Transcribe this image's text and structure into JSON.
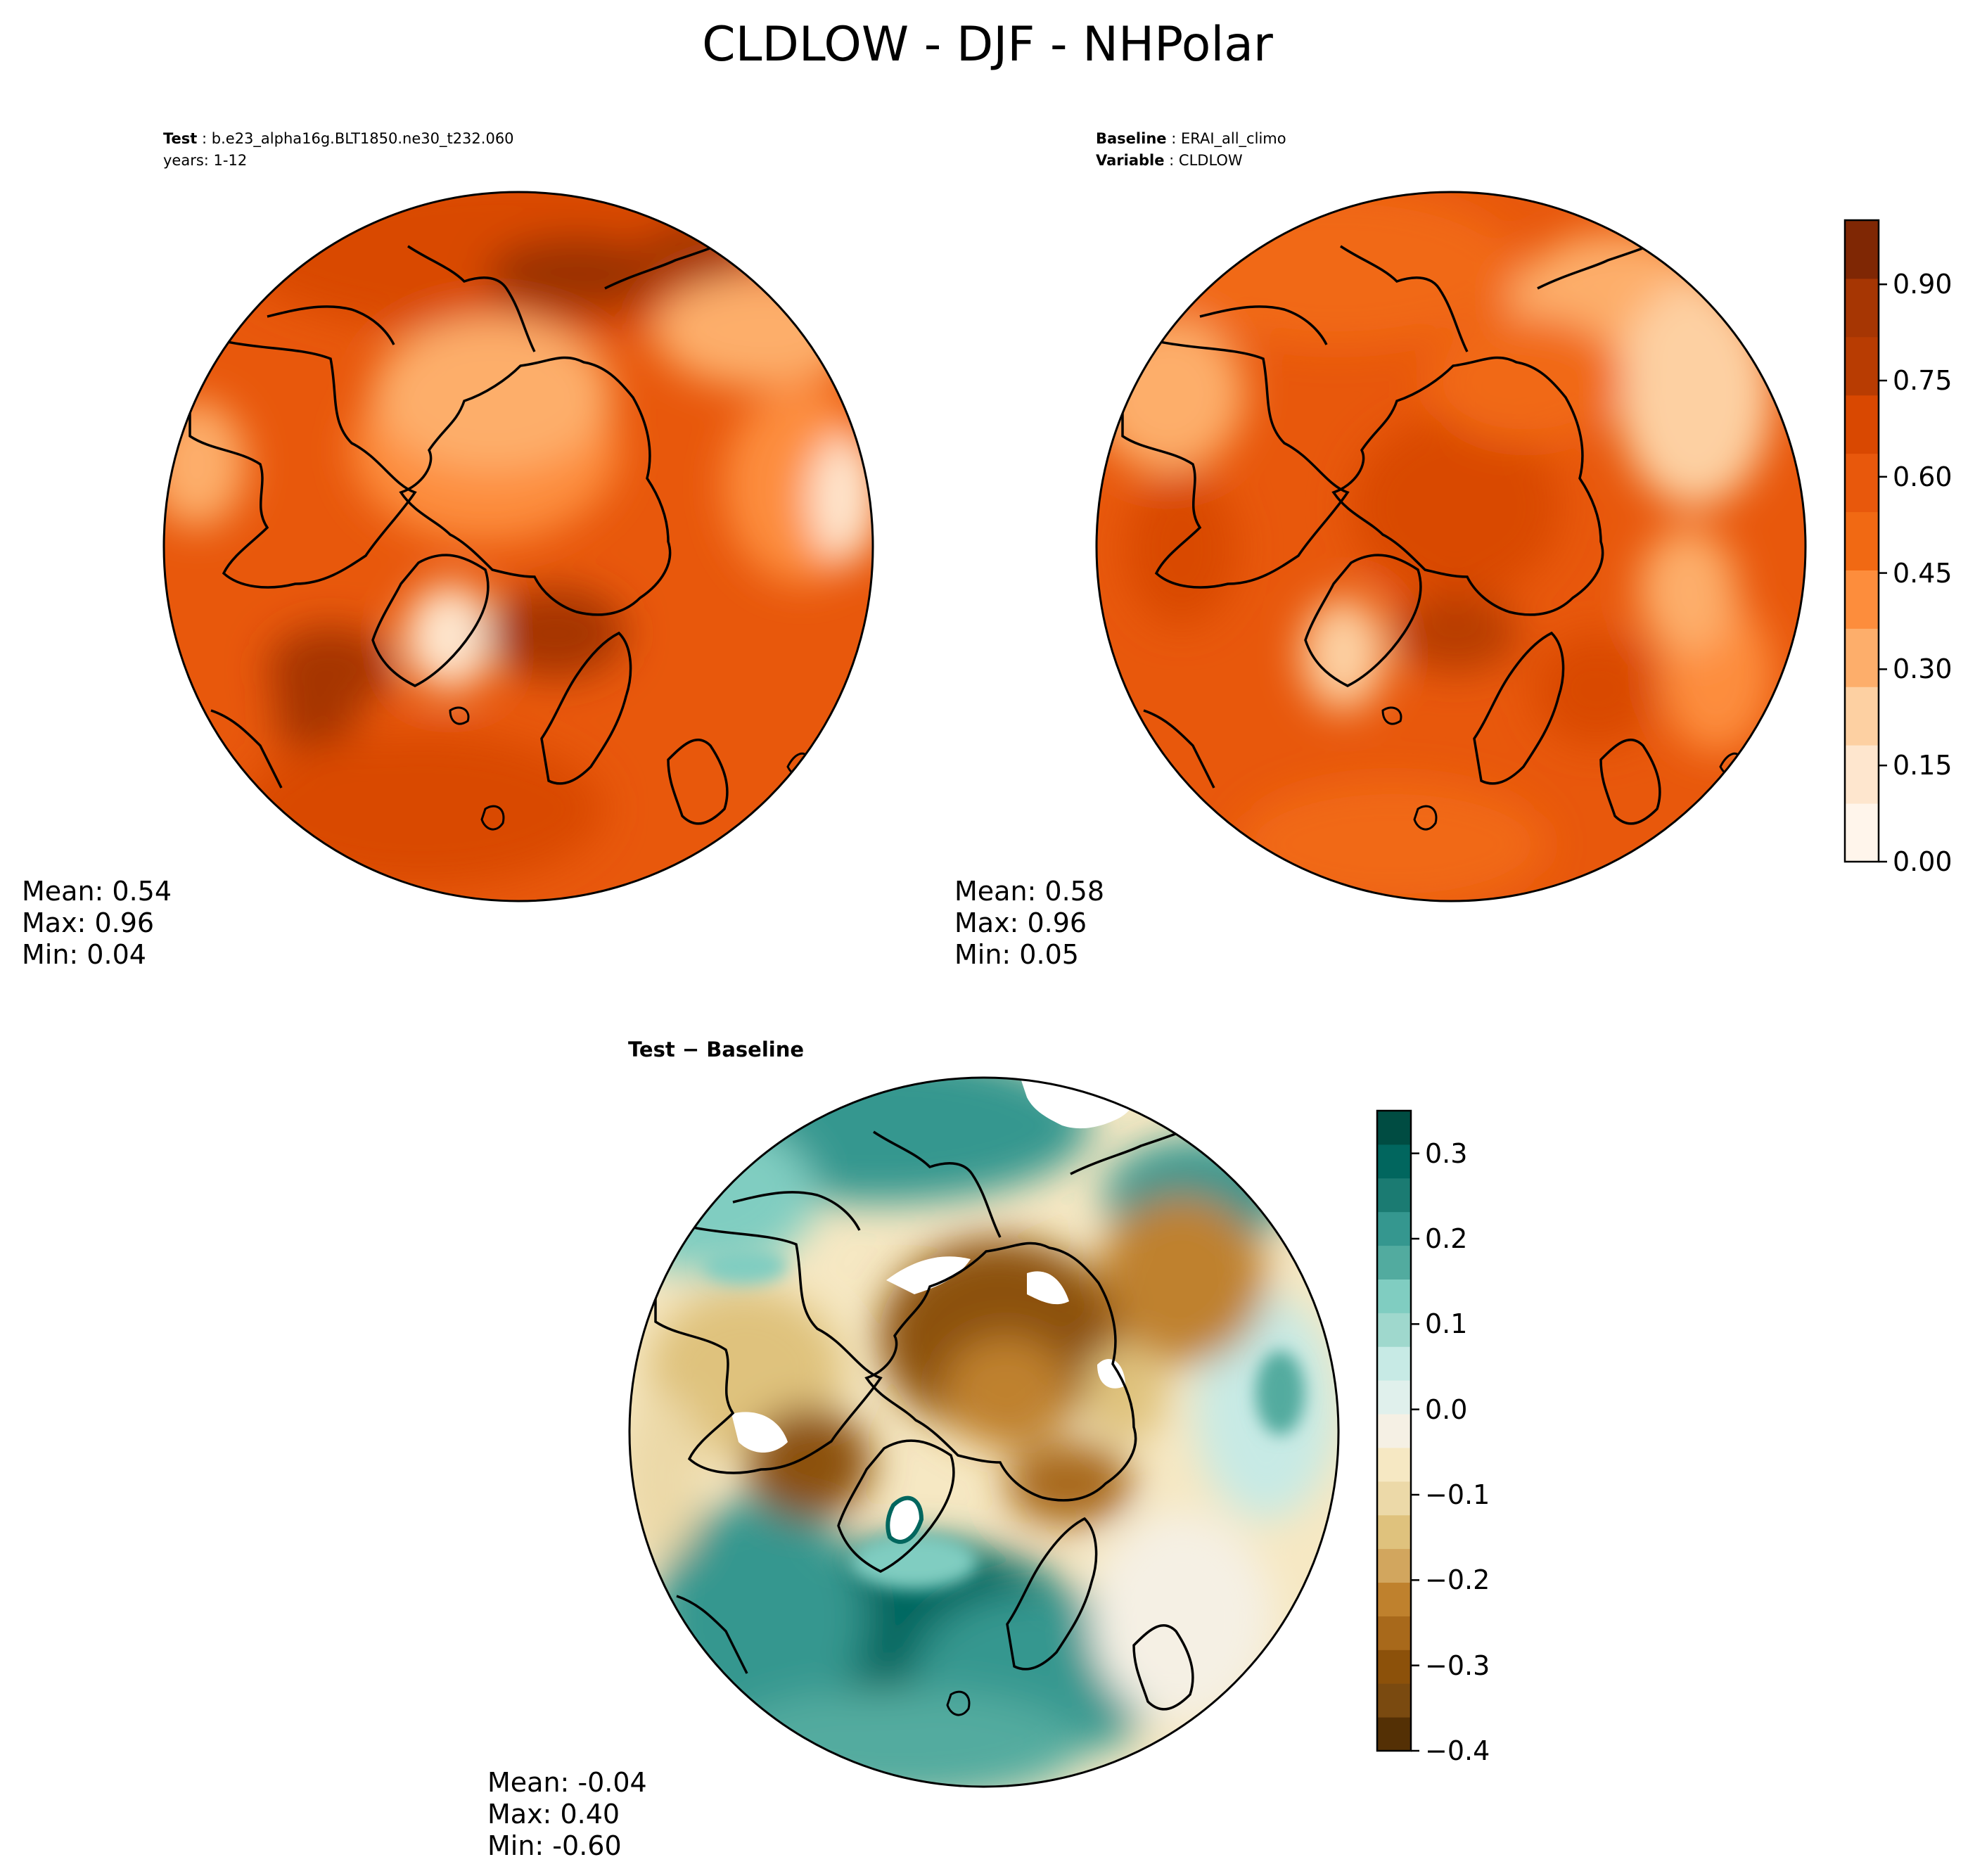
{
  "title": "CLDLOW - DJF - NHPolar",
  "panels": {
    "test": {
      "header_label": "Test",
      "header_value": "b.e23_alpha16g.BLT1850.ne30_t232.060",
      "years": "years: 1-12",
      "stats": {
        "mean": "Mean:  0.54",
        "max": "Max:  0.96",
        "min": "Min:  0.04"
      }
    },
    "baseline": {
      "header_label": "Baseline",
      "header_value": "ERAI_all_climo",
      "variable_label": "Variable",
      "variable_value": "CLDLOW",
      "stats": {
        "mean": "Mean:  0.58",
        "max": "Max:  0.96",
        "min": "Min:  0.05"
      }
    },
    "difference": {
      "title": "Test − Baseline",
      "stats": {
        "mean": "Mean: -0.04",
        "max": "Max:  0.40",
        "min": "Min: -0.60"
      }
    }
  },
  "colorbars": {
    "main": {
      "colormap": "Oranges",
      "range": [
        0.0,
        1.0
      ],
      "ticks": [
        "0.90",
        "0.75",
        "0.60",
        "0.45",
        "0.30",
        "0.15",
        "0.00"
      ],
      "colors": [
        "#fff5eb",
        "#fee6ce",
        "#fdd0a2",
        "#fdae6b",
        "#fd8d3c",
        "#f16913",
        "#e8580c",
        "#d94801",
        "#b83c02",
        "#a63603",
        "#7f2704"
      ]
    },
    "diff": {
      "colormap": "BrBG",
      "range": [
        -0.4,
        0.35
      ],
      "ticks": [
        "0.3",
        "0.2",
        "0.1",
        "0.0",
        "−0.1",
        "−0.2",
        "−0.3",
        "−0.4"
      ],
      "colors": [
        "#543005",
        "#7a4a10",
        "#8c510a",
        "#a8691b",
        "#bf812d",
        "#d2a65e",
        "#dfc27d",
        "#ecd9a8",
        "#f6e8c3",
        "#f5f0e4",
        "#e0f0ec",
        "#c7eae5",
        "#9fd8cd",
        "#80cdc1",
        "#52ab9f",
        "#35978f",
        "#1b7b72",
        "#01665e",
        "#004c42"
      ]
    }
  }
}
